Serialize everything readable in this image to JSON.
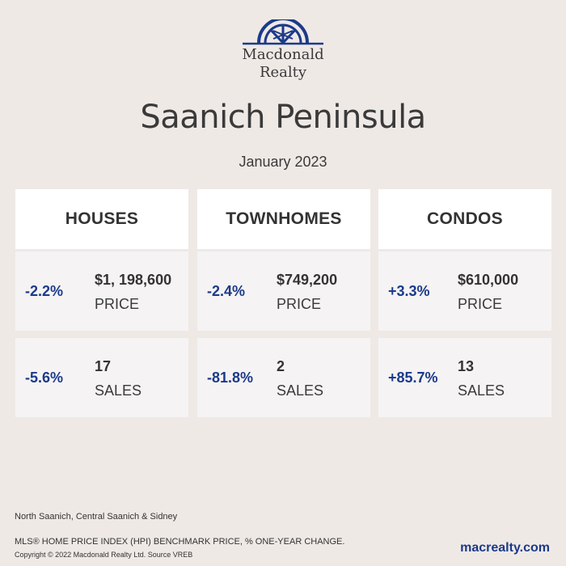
{
  "brand": {
    "logo_line1": "Macdonald",
    "logo_line2": "Realty",
    "accent_color": "#1b3a8a"
  },
  "title": "Saanich Peninsula",
  "subtitle": "January 2023",
  "columns": [
    {
      "heading": "HOUSES",
      "price": {
        "change": "-2.2%",
        "value": "$1, 198,600",
        "label": "PRICE"
      },
      "sales": {
        "change": "-5.6%",
        "value": "17",
        "label": "SALES"
      }
    },
    {
      "heading": "TOWNHOMES",
      "price": {
        "change": "-2.4%",
        "value": "$749,200",
        "label": "PRICE"
      },
      "sales": {
        "change": "-81.8%",
        "value": "2",
        "label": "SALES"
      }
    },
    {
      "heading": "CONDOS",
      "price": {
        "change": "+3.3%",
        "value": "$610,000",
        "label": "PRICE"
      },
      "sales": {
        "change": "+85.7%",
        "value": "13",
        "label": "SALES"
      }
    }
  ],
  "footer": {
    "area_note": "North Saanich, Central Saanich & Sidney",
    "index_note": "MLS® HOME PRICE INDEX (HPI) BENCHMARK PRICE, % ONE-YEAR CHANGE.",
    "copyright": "Copyright © 2022 Macdonald Realty Ltd. Source VREB",
    "website": "macrealty.com"
  }
}
